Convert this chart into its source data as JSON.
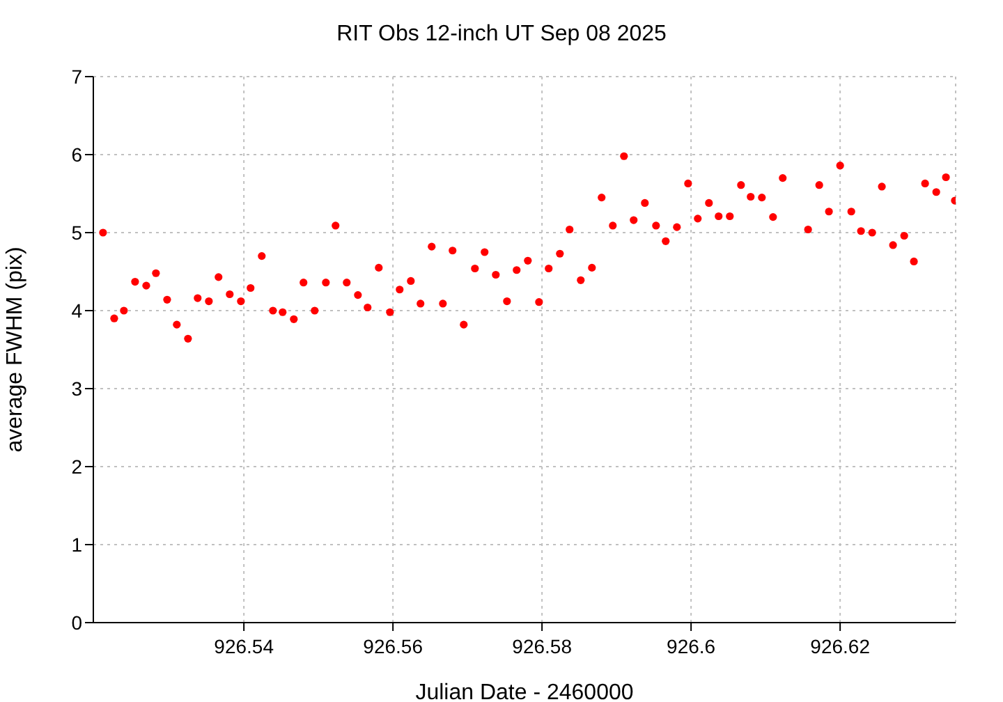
{
  "chart_data": {
    "type": "scatter",
    "title": "RIT Obs 12-inch UT Sep 08 2025",
    "xlabel": "Julian Date - 2460000",
    "ylabel": "average FWHM (pix)",
    "x": [
      926.5211,
      926.5226,
      926.5239,
      926.5254,
      926.5269,
      926.5282,
      926.5297,
      926.531,
      926.5325,
      926.5338,
      926.5353,
      926.5366,
      926.5381,
      926.5396,
      926.5409,
      926.5424,
      926.5439,
      926.5452,
      926.5467,
      926.548,
      926.5495,
      926.551,
      926.5523,
      926.5538,
      926.5553,
      926.5566,
      926.5581,
      926.5596,
      926.5609,
      926.5624,
      926.5637,
      926.5652,
      926.5667,
      926.568,
      926.5695,
      926.571,
      926.5723,
      926.5738,
      926.5753,
      926.5766,
      926.5781,
      926.5796,
      926.5809,
      926.5824,
      926.5837,
      926.5852,
      926.5867,
      926.588,
      926.5895,
      926.591,
      926.5923,
      926.5938,
      926.5953,
      926.5966,
      926.5981,
      926.5996,
      926.6009,
      926.6024,
      926.6037,
      926.6052,
      926.6067,
      926.608,
      926.6095,
      926.611,
      926.6123,
      926.6157,
      926.6172,
      926.6185,
      926.62,
      926.6215,
      926.6228,
      926.6243,
      926.6256,
      926.6271,
      926.6286,
      926.6299,
      926.6314,
      926.6329,
      926.6342,
      926.6354
    ],
    "series": [
      {
        "color": "#ff0000",
        "values": [
          5.0,
          3.9,
          4.0,
          4.37,
          4.32,
          4.48,
          4.14,
          3.82,
          3.64,
          4.16,
          4.12,
          4.43,
          4.21,
          4.12,
          4.29,
          4.7,
          4.0,
          3.98,
          3.89,
          4.36,
          4.0,
          4.36,
          5.09,
          4.36,
          4.2,
          4.04,
          4.55,
          3.98,
          4.27,
          4.38,
          4.09,
          4.82,
          4.09,
          4.77,
          3.82,
          4.54,
          4.75,
          4.46,
          4.12,
          4.52,
          4.64,
          4.11,
          4.54,
          4.73,
          5.04,
          4.39,
          4.55,
          5.45,
          5.09,
          5.98,
          5.16,
          5.38,
          5.09,
          4.89,
          5.07,
          5.63,
          5.18,
          5.38,
          5.21,
          5.21,
          5.61,
          5.46,
          5.45,
          5.2,
          5.7,
          5.04,
          5.61,
          5.27,
          5.86,
          5.27,
          5.02,
          5.0,
          5.59,
          4.84,
          4.96,
          4.63,
          5.63,
          5.52,
          5.71,
          5.41
        ]
      }
    ],
    "xlim": [
      926.5198,
      926.6355
    ],
    "xticks": [
      926.54,
      926.56,
      926.58,
      926.6,
      926.62
    ],
    "ylim": [
      0,
      7
    ],
    "yticks": [
      0,
      1,
      2,
      3,
      4,
      5,
      6,
      7
    ],
    "grid": true,
    "legend": false,
    "marker": "circle"
  }
}
